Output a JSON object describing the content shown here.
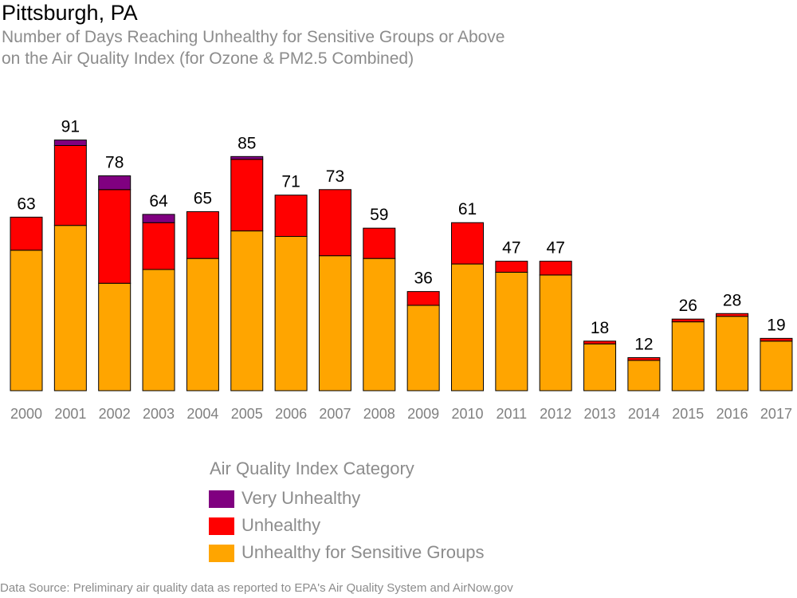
{
  "title": "Pittsburgh, PA",
  "subtitle": {
    "line1": "Number of Days Reaching Unhealthy for Sensitive Groups or Above",
    "line2": "on the Air Quality Index (for Ozone & PM2.5 Combined)"
  },
  "legend": {
    "title": "Air Quality Index Category",
    "items": [
      {
        "label": "Very Unhealthy",
        "color": "#800080"
      },
      {
        "label": "Unhealthy",
        "color": "#ff0000"
      },
      {
        "label": "Unhealthy for Sensitive Groups",
        "color": "#ffa500"
      }
    ]
  },
  "source": "Data Source: Preliminary air quality data as reported to EPA's Air Quality System and AirNow.gov",
  "chart_data": {
    "type": "bar",
    "stacked": true,
    "categories": [
      "2000",
      "2001",
      "2002",
      "2003",
      "2004",
      "2005",
      "2006",
      "2007",
      "2008",
      "2009",
      "2010",
      "2011",
      "2012",
      "2013",
      "2014",
      "2015",
      "2016",
      "2017"
    ],
    "series": [
      {
        "name": "Unhealthy for Sensitive Groups",
        "color": "#ffa500",
        "values": [
          51,
          60,
          39,
          44,
          48,
          58,
          56,
          49,
          48,
          31,
          46,
          43,
          42,
          17,
          11,
          25,
          27,
          18
        ]
      },
      {
        "name": "Unhealthy",
        "color": "#ff0000",
        "values": [
          12,
          29,
          34,
          17,
          17,
          26,
          15,
          24,
          11,
          5,
          15,
          4,
          5,
          1,
          1,
          1,
          1,
          1
        ]
      },
      {
        "name": "Very Unhealthy",
        "color": "#800080",
        "values": [
          0,
          2,
          5,
          3,
          0,
          1,
          0,
          0,
          0,
          0,
          0,
          0,
          0,
          0,
          0,
          0,
          0,
          0
        ]
      }
    ],
    "totals": [
      63,
      91,
      78,
      64,
      65,
      85,
      71,
      73,
      59,
      36,
      61,
      47,
      47,
      18,
      12,
      26,
      28,
      19
    ],
    "ylim": [
      0,
      95
    ],
    "grid": false
  }
}
